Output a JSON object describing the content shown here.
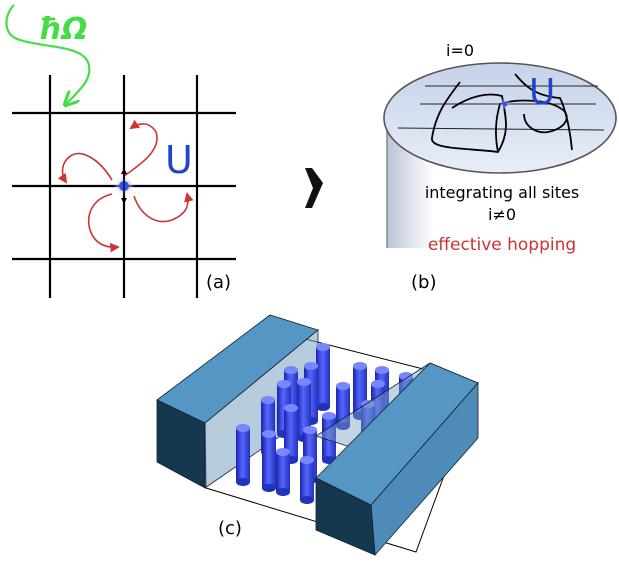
{
  "panel_a": {
    "photon_label": "ħΩ",
    "interaction_label": "U",
    "panel_label": "(a)",
    "colors": {
      "photon": "#44dd44",
      "arrows": "#cc3333",
      "U": "#2244cc",
      "grid": "#000000"
    }
  },
  "panel_b": {
    "site_label": "i=0",
    "interaction_label": "U",
    "integrating_text": "integrating all sites",
    "excluded_text": "i≠0",
    "hopping_text": "effective hopping",
    "panel_label": "(b)",
    "colors": {
      "disk": "#d6deee",
      "hopping": "#cc3333",
      "U": "#2244cc"
    }
  },
  "panel_c": {
    "panel_label": "(c)",
    "colors": {
      "blocks": "#4a8ab8",
      "pillars": "#3344ee"
    }
  },
  "arrow_icon": "right-arrow"
}
